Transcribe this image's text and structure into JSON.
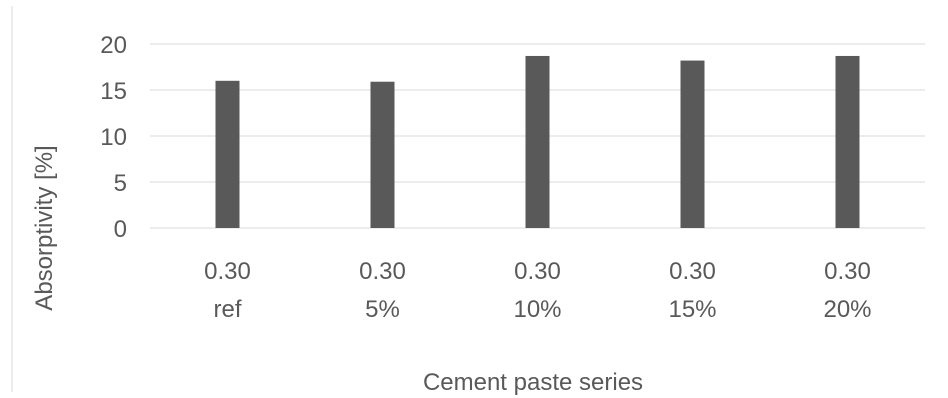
{
  "chart_data": {
    "type": "bar",
    "categories": [
      [
        "0.30",
        "ref"
      ],
      [
        "0.30",
        "5%"
      ],
      [
        "0.30",
        "10%"
      ],
      [
        "0.30",
        "15%"
      ],
      [
        "0.30",
        "20%"
      ]
    ],
    "values": [
      16.0,
      15.9,
      18.7,
      18.2,
      18.7
    ],
    "title": "",
    "xlabel": "Cement paste series",
    "ylabel": "Absorptivity [%]",
    "ylim": [
      0,
      20
    ],
    "yticks": [
      0,
      5,
      10,
      15,
      20
    ],
    "grid": true,
    "legend": "none",
    "colors": {
      "bar": "#595959",
      "grid": "#d9d9d9",
      "axis": "#d9d9d9",
      "text": "#595959",
      "frame": "#d9d9d9"
    }
  }
}
